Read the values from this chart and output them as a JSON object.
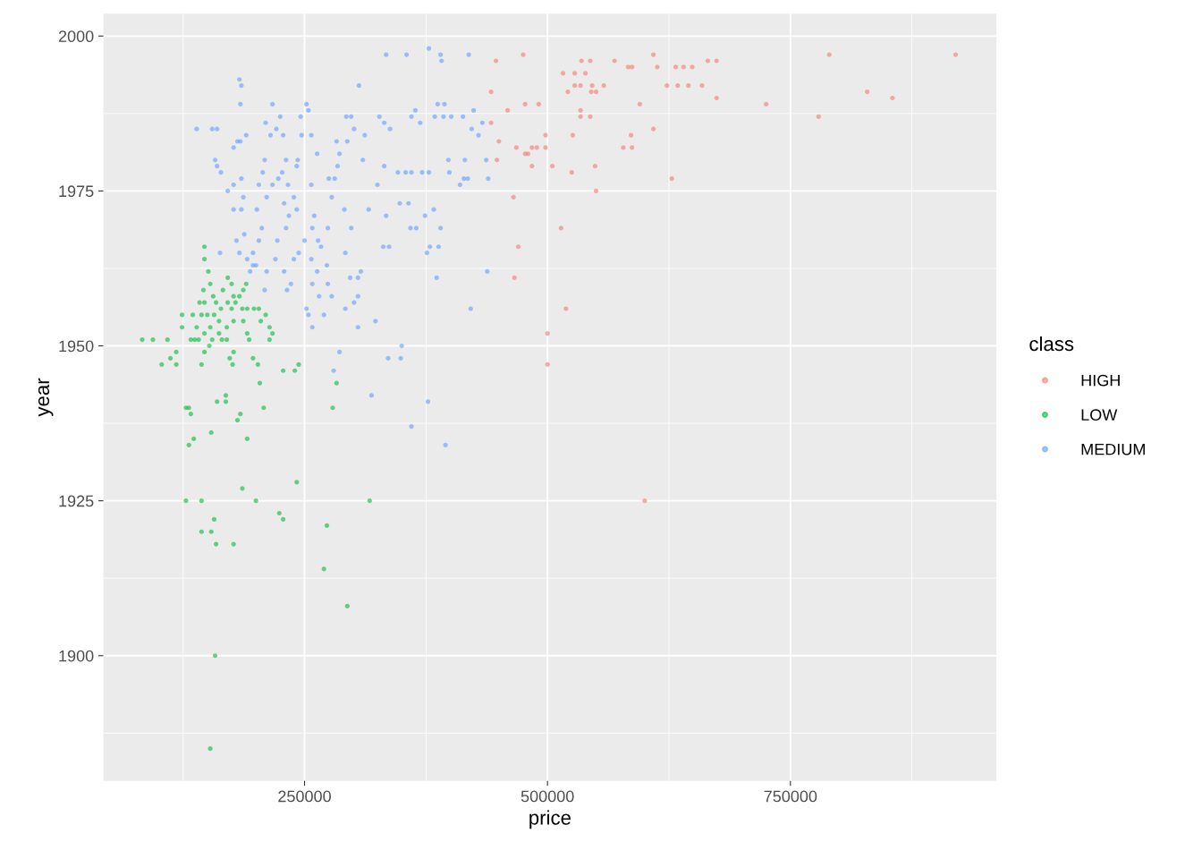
{
  "chart_data": {
    "type": "scatter",
    "xlabel": "price",
    "ylabel": "year",
    "legend_title": "class",
    "legend": "right",
    "grid": true,
    "marker": "circle",
    "xlim": [
      43000,
      962000
    ],
    "ylim": [
      1879.8,
      2003.6
    ],
    "xticks": [
      250000,
      500000,
      750000
    ],
    "yticks": [
      1900,
      1925,
      1950,
      1975,
      2000
    ],
    "series": [
      {
        "name": "HIGH",
        "color": "#f8766d",
        "x": [
          920000,
          829000,
          855000,
          790000,
          779000,
          725000,
          674000,
          674000,
          665000,
          645000,
          659000,
          634000,
          623000,
          640000,
          649000,
          632000,
          569000,
          583000,
          587000,
          558000,
          546000,
          521000,
          545000,
          550000,
          534000,
          528000,
          516000,
          528000,
          535000,
          544000,
          539000,
          544000,
          534000,
          534000,
          475000,
          447000,
          442000,
          442000,
          450000,
          448000,
          459000,
          477000,
          491000,
          468000,
          477000,
          480000,
          484000,
          489000,
          498000,
          498000,
          484000,
          505000,
          525000,
          526000,
          549000,
          550000,
          465000,
          470000,
          514000,
          466000,
          519000,
          500000,
          500000,
          600000,
          578000,
          587000,
          586000,
          609000,
          595000,
          628000,
          609000,
          613000
        ],
        "values": [
          1997,
          1991,
          1990,
          1997,
          1987,
          1989,
          1996,
          1990,
          1996,
          1992,
          1992,
          1992,
          1992,
          1995,
          1995,
          1995,
          1996,
          1995,
          1995,
          1992,
          1992,
          1991,
          1991,
          1991,
          1992,
          1992,
          1994,
          1994,
          1996,
          1996,
          1994,
          1987,
          1988,
          1987,
          1997,
          1996,
          1991,
          1986,
          1983,
          1980,
          1988,
          1989,
          1989,
          1982,
          1981,
          1981,
          1982,
          1982,
          1984,
          1982,
          1979,
          1979,
          1978,
          1984,
          1979,
          1975,
          1974,
          1966,
          1969,
          1961,
          1956,
          1952,
          1947,
          1925,
          1982,
          1982,
          1984,
          1985,
          1989,
          1977,
          1997,
          1995
        ]
      },
      {
        "name": "LOW",
        "color": "#00ba38",
        "x": [
          83000,
          94000,
          109000,
          103000,
          112000,
          118000,
          118000,
          124000,
          124000,
          135000,
          133000,
          137000,
          141000,
          139000,
          142000,
          147000,
          144000,
          150000,
          146000,
          147000,
          147000,
          151000,
          153000,
          156000,
          159000,
          157000,
          153000,
          147000,
          155000,
          152000,
          144000,
          147000,
          162000,
          164000,
          166000,
          171000,
          175000,
          171000,
          175000,
          177000,
          179000,
          177000,
          170000,
          162000,
          165000,
          170000,
          177000,
          173000,
          176000,
          183000,
          187000,
          190000,
          186000,
          191000,
          187000,
          191000,
          198000,
          203000,
          205000,
          193000,
          197000,
          202000,
          204000,
          217000,
          214000,
          208000,
          128000,
          131000,
          133000,
          131000,
          136000,
          169000,
          169000,
          160000,
          154000,
          181000,
          184000,
          191000,
          186000,
          200000,
          128000,
          144000,
          144000,
          157000,
          154000,
          159000,
          177000,
          224000,
          228000,
          228000,
          240000,
          244000,
          242000,
          273000,
          270000,
          294000,
          317000,
          279000,
          283000,
          158000,
          153000,
          214000,
          210000
        ],
        "values": [
          1951,
          1951,
          1951,
          1947,
          1948,
          1949,
          1947,
          1953,
          1955,
          1955,
          1951,
          1951,
          1951,
          1953,
          1957,
          1957,
          1955,
          1955,
          1959,
          1966,
          1964,
          1962,
          1960,
          1958,
          1957,
          1955,
          1953,
          1952,
          1951,
          1950,
          1947,
          1949,
          1954,
          1956,
          1959,
          1961,
          1960,
          1957,
          1956,
          1958,
          1957,
          1954,
          1953,
          1952,
          1951,
          1951,
          1949,
          1948,
          1947,
          1958,
          1959,
          1960,
          1956,
          1956,
          1954,
          1952,
          1956,
          1956,
          1954,
          1951,
          1948,
          1947,
          1944,
          1952,
          1951,
          1940,
          1940,
          1940,
          1939,
          1934,
          1935,
          1942,
          1941,
          1941,
          1936,
          1938,
          1939,
          1935,
          1927,
          1925,
          1925,
          1925,
          1920,
          1922,
          1920,
          1918,
          1918,
          1923,
          1922,
          1946,
          1946,
          1947,
          1928,
          1921,
          1914,
          1908,
          1925,
          1940,
          1944,
          1900,
          1885,
          1953,
          1955
        ]
      },
      {
        "name": "MEDIUM",
        "color": "#619cff",
        "x": [
          139000,
          155000,
          160000,
          158000,
          160000,
          164000,
          177000,
          181000,
          184000,
          183000,
          185000,
          185000,
          187000,
          184000,
          190000,
          177000,
          171000,
          177000,
          185000,
          180000,
          188000,
          183000,
          191000,
          203000,
          197000,
          200000,
          211000,
          209000,
          206000,
          201000,
          211000,
          203000,
          207000,
          209000,
          210000,
          215000,
          221000,
          217000,
          225000,
          228000,
          223000,
          227000,
          231000,
          217000,
          233000,
          229000,
          234000,
          231000,
          222000,
          220000,
          229000,
          236000,
          232000,
          239000,
          244000,
          250000,
          242000,
          239000,
          242000,
          243000,
          247000,
          246000,
          254000,
          252000,
          257000,
          263000,
          257000,
          260000,
          258000,
          264000,
          267000,
          257000,
          263000,
          258000,
          252000,
          254000,
          258000,
          265000,
          270000,
          274000,
          273000,
          278000,
          280000,
          286000,
          275000,
          281000,
          278000,
          274000,
          284000,
          286000,
          283000,
          293000,
          298000,
          294000,
          291000,
          298000,
          292000,
          297000,
          301000,
          292000,
          305000,
          305000,
          308000,
          305000,
          306000,
          301000,
          310000,
          312000,
          316000,
          323000,
          325000,
          327000,
          332000,
          332000,
          334000,
          331000,
          337000,
          338000,
          336000,
          346000,
          334000,
          348000,
          349000,
          350000,
          354000,
          357000,
          359000,
          360000,
          360000,
          364000,
          360000,
          369000,
          365000,
          371000,
          374000,
          378000,
          379000,
          383000,
          384000,
          378000,
          377000,
          387000,
          390000,
          391000,
          390000,
          388000,
          393000,
          395000,
          399000,
          398000,
          401000,
          394000,
          410000,
          413000,
          415000,
          419000,
          424000,
          414000,
          418000,
          421000,
          433000,
          437000,
          439000,
          438000,
          386000,
          355000,
          422000,
          429000,
          376000,
          319000,
          194000,
          197000,
          163000
        ],
        "values": [
          1985,
          1985,
          1985,
          1980,
          1979,
          1978,
          1982,
          1983,
          1989,
          1993,
          1992,
          1977,
          1974,
          1983,
          1984,
          1976,
          1975,
          1972,
          1972,
          1967,
          1968,
          1965,
          1964,
          1967,
          1965,
          1963,
          1962,
          1959,
          1969,
          1972,
          1974,
          1976,
          1978,
          1980,
          1986,
          1984,
          1985,
          1989,
          1987,
          1984,
          1977,
          1978,
          1980,
          1976,
          1976,
          1973,
          1971,
          1969,
          1967,
          1964,
          1962,
          1960,
          1959,
          1964,
          1965,
          1967,
          1972,
          1974,
          1979,
          1980,
          1984,
          1987,
          1988,
          1989,
          1984,
          1981,
          1976,
          1971,
          1969,
          1967,
          1966,
          1964,
          1962,
          1960,
          1956,
          1955,
          1953,
          1958,
          1955,
          1960,
          1963,
          1958,
          1946,
          1949,
          1977,
          1977,
          1974,
          1969,
          1979,
          1981,
          1983,
          1987,
          1987,
          1983,
          1972,
          1969,
          1965,
          1961,
          1957,
          1956,
          1953,
          1958,
          1962,
          1961,
          1992,
          1985,
          1980,
          1984,
          1972,
          1954,
          1976,
          1987,
          1986,
          1979,
          1971,
          1966,
          1966,
          1985,
          1948,
          1978,
          1997,
          1973,
          1948,
          1950,
          1978,
          1973,
          1969,
          1978,
          1987,
          1988,
          1937,
          1986,
          1969,
          1978,
          1971,
          1978,
          1966,
          1972,
          1987,
          1998,
          1941,
          1989,
          1997,
          1996,
          1969,
          1966,
          1987,
          1934,
          1978,
          1980,
          1987,
          1989,
          1976,
          1987,
          1980,
          1997,
          1988,
          1977,
          1977,
          1956,
          1986,
          1980,
          1977,
          1962,
          1961,
          1997,
          1985,
          1984,
          1965,
          1942,
          1962,
          1963,
          1965
        ]
      }
    ]
  }
}
